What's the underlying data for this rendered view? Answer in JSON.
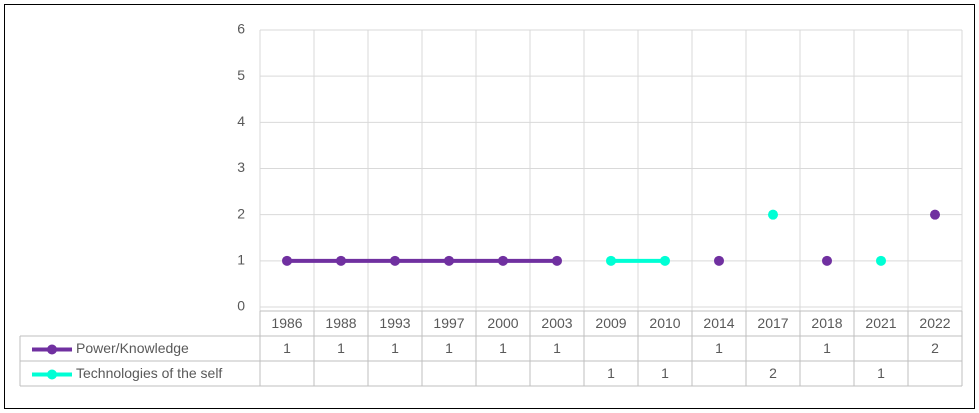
{
  "chart_data": {
    "type": "line",
    "categories": [
      "1986",
      "1988",
      "1993",
      "1997",
      "2000",
      "2003",
      "2009",
      "2010",
      "2014",
      "2017",
      "2018",
      "2021",
      "2022"
    ],
    "series": [
      {
        "name": "Power/Knowledge",
        "color": "#7030a0",
        "values": [
          1,
          1,
          1,
          1,
          1,
          1,
          null,
          null,
          1,
          null,
          1,
          null,
          2
        ]
      },
      {
        "name": "Technologies of the self",
        "color": "#00ffd5",
        "values": [
          null,
          null,
          null,
          null,
          null,
          null,
          1,
          1,
          null,
          2,
          null,
          1,
          null
        ]
      }
    ],
    "ylim": [
      0,
      6
    ],
    "yticks": [
      0,
      1,
      2,
      3,
      4,
      5,
      6
    ],
    "grid": true
  }
}
